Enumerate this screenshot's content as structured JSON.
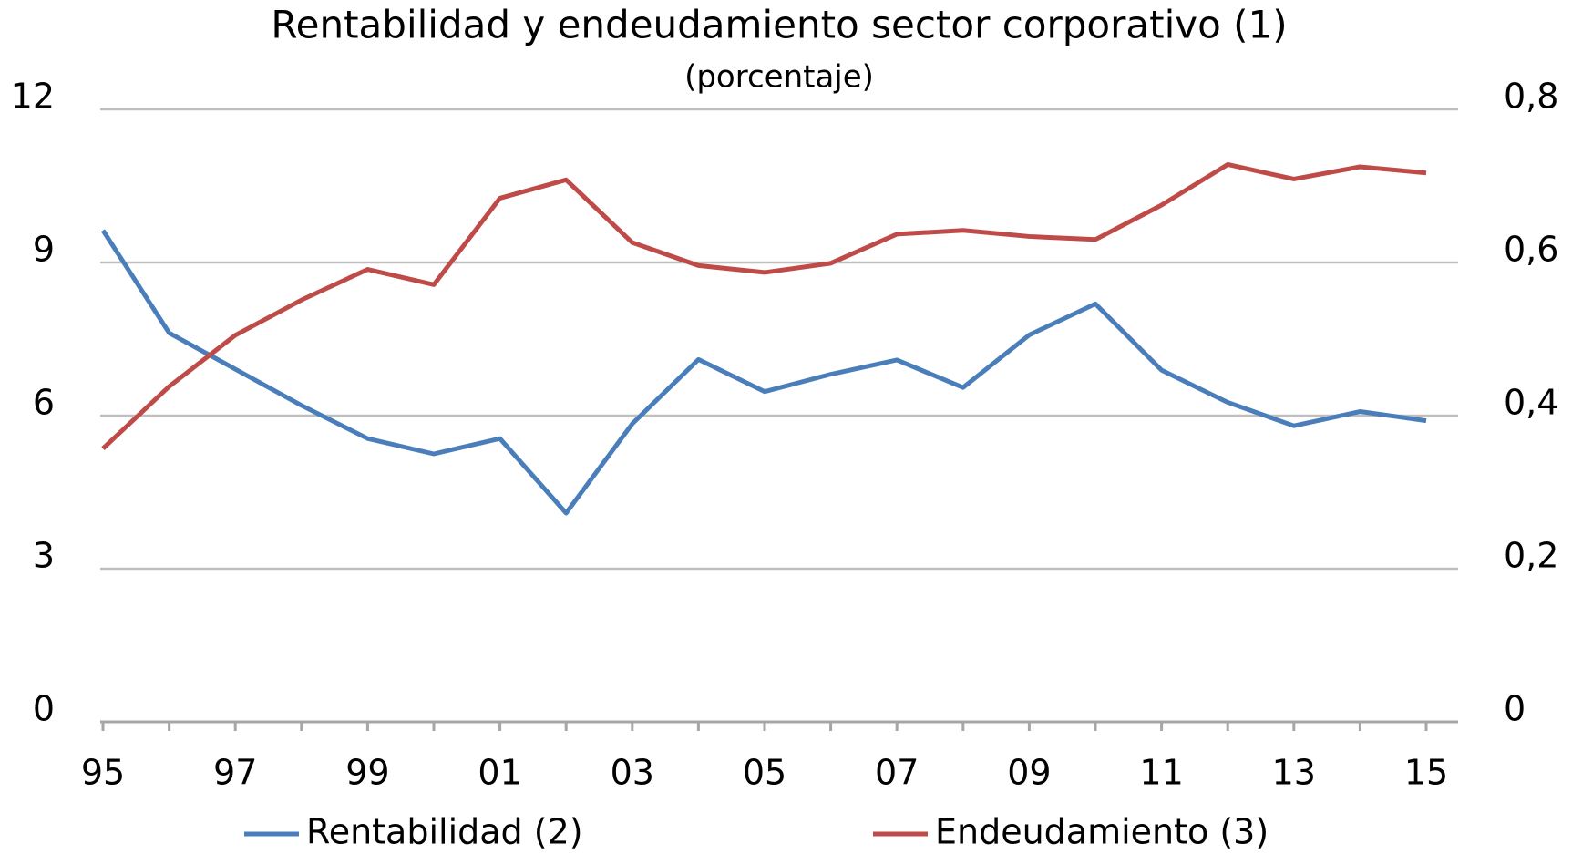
{
  "chart_data": {
    "type": "line",
    "title": "Rentabilidad y endeudamiento sector corporativo (1)",
    "subtitle": "(porcentaje)",
    "categories": [
      "95",
      null,
      "97",
      null,
      "99",
      null,
      "01",
      null,
      "03",
      null,
      "05",
      null,
      "07",
      null,
      "09",
      null,
      "11",
      null,
      "13",
      null,
      "15"
    ],
    "series": [
      {
        "name": "Rentabilidad (2)",
        "color": "#4a7ebb",
        "axis": "y",
        "values": [
          9.63,
          7.62,
          6.91,
          6.2,
          5.55,
          5.25,
          5.55,
          4.09,
          5.84,
          7.1,
          6.47,
          6.81,
          7.09,
          6.55,
          7.58,
          8.19,
          6.89,
          6.26,
          5.8,
          6.08,
          5.9
        ]
      },
      {
        "name": "Endeudamiento (3)",
        "color": "#be4b48",
        "axis": "y2",
        "values": [
          0.357,
          0.438,
          0.505,
          0.551,
          0.591,
          0.571,
          0.684,
          0.708,
          0.626,
          0.596,
          0.587,
          0.599,
          0.637,
          0.642,
          0.634,
          0.63,
          0.675,
          0.728,
          0.709,
          0.725,
          0.717
        ]
      }
    ],
    "ylim": [
      0,
      12
    ],
    "yticks": [
      0,
      3,
      6,
      9,
      12
    ],
    "y2lim": [
      0,
      0.8
    ],
    "y2ticks": [
      0,
      {
        "value": 0.2,
        "label": "0,2"
      },
      {
        "value": 0.4,
        "label": "0,4"
      },
      {
        "value": 0.6,
        "label": "0,6"
      },
      {
        "value": 0.8,
        "label": "0,8"
      }
    ],
    "grid": true,
    "legend": "bottom"
  }
}
